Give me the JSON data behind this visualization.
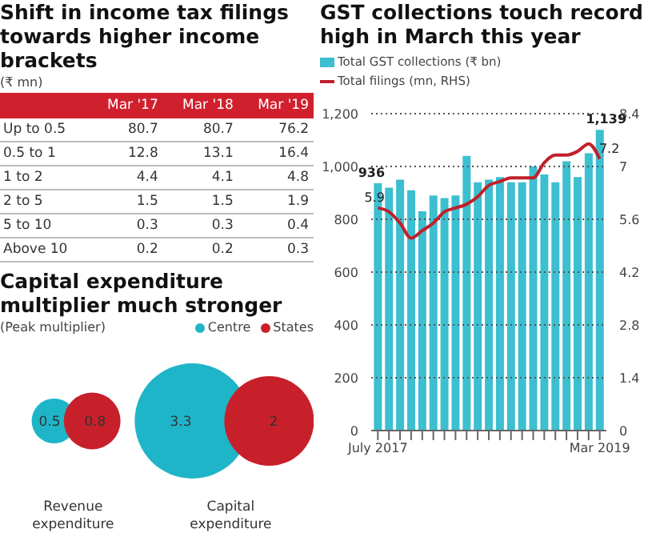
{
  "chart_data": [
    {
      "type": "heatmap",
      "title": "Shift in income tax filings towards higher income brackets",
      "subtitle": "(₹ mn)",
      "categories": [
        "Mar '17",
        "Mar '18",
        "Mar '19"
      ],
      "y_categories": [
        "Up to 0.5",
        "0.5 to 1",
        "1 to 2",
        "2 to 5",
        "5 to 10",
        "Above 10"
      ],
      "cells": [
        [
          80.7,
          80.7,
          76.2
        ],
        [
          12.8,
          13.1,
          16.4
        ],
        [
          4.4,
          4.1,
          4.8
        ],
        [
          1.5,
          1.5,
          1.9
        ],
        [
          0.3,
          0.3,
          0.4
        ],
        [
          0.2,
          0.2,
          0.3
        ]
      ],
      "data_labels": true
    },
    {
      "type": "other",
      "title": "Capital expenditure multiplier much stronger",
      "subtitle": "(Peak multiplier)",
      "categories": [
        "Revenue expenditure",
        "Capital expenditure"
      ],
      "legend": "top",
      "series": [
        {
          "name": "Centre",
          "color": "#1fb5c8",
          "values": [
            0.5,
            3.3
          ]
        },
        {
          "name": "States",
          "color": "#c8202a",
          "values": [
            0.8,
            2
          ]
        }
      ],
      "data_labels": true
    },
    {
      "type": "bar",
      "title": "GST collections touch record high in March this year",
      "categories": [
        "July 2017",
        null,
        null,
        null,
        null,
        null,
        null,
        null,
        null,
        null,
        null,
        null,
        null,
        null,
        null,
        null,
        null,
        null,
        null,
        null,
        "Mar 2019"
      ],
      "series": [
        {
          "name": "Total GST collections (₹ bn)",
          "type": "bar",
          "color": "#3cbfd0",
          "values": [
            936,
            920,
            950,
            910,
            830,
            890,
            880,
            890,
            1040,
            940,
            950,
            960,
            940,
            940,
            1000,
            970,
            940,
            1020,
            960,
            1050,
            1139
          ],
          "value_labels": [
            "936",
            null,
            null,
            null,
            null,
            null,
            null,
            null,
            null,
            null,
            null,
            null,
            null,
            null,
            null,
            null,
            null,
            null,
            null,
            null,
            "1,139"
          ]
        },
        {
          "name": "Total filings (mn, RHS)",
          "type": "line",
          "axis": "y2",
          "color": "#c0202a",
          "values": [
            5.9,
            5.8,
            5.5,
            5.1,
            5.3,
            5.5,
            5.8,
            5.9,
            6.0,
            6.2,
            6.5,
            6.6,
            6.7,
            6.7,
            6.7,
            7.1,
            7.3,
            7.3,
            7.4,
            7.6,
            7.2
          ],
          "value_labels": [
            "5.9",
            null,
            null,
            null,
            null,
            null,
            null,
            null,
            null,
            null,
            null,
            null,
            null,
            null,
            null,
            null,
            null,
            null,
            null,
            null,
            "7.2"
          ]
        }
      ],
      "ylim": [
        0,
        1200
      ],
      "yticks": [
        0,
        200,
        400,
        600,
        800,
        {
          "value": 1000,
          "label": "1,000"
        },
        {
          "value": 1200,
          "label": "1,200"
        }
      ],
      "y2lim": [
        0,
        8.4
      ],
      "y2ticks": [
        0,
        1.4,
        2.8,
        4.2,
        5.6,
        7,
        8.4
      ],
      "grid": "y",
      "legend": "top left"
    }
  ]
}
